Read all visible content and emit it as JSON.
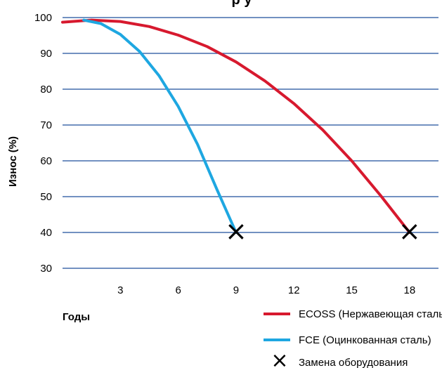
{
  "colors": {
    "grid": "#1d4f9c",
    "ecoss": "#d7192e",
    "fce": "#1ea7e1",
    "marker": "#000000"
  },
  "chart_data": {
    "type": "line",
    "title": "",
    "title_visible": "р у",
    "xlabel": "Годы",
    "ylabel": "Износ (%)",
    "xlim": [
      0,
      19.5
    ],
    "ylim": [
      30,
      100
    ],
    "x_ticks": [
      3,
      6,
      9,
      12,
      15,
      18
    ],
    "y_ticks": [
      30,
      40,
      50,
      60,
      70,
      80,
      90,
      100
    ],
    "grid": "horizontal",
    "legend_position": "bottom-right",
    "series": [
      {
        "name": "ECOSS (Нержавеющая сталь)",
        "color_key": "ecoss",
        "x": [
          0,
          1.5,
          3,
          4.5,
          6,
          7.5,
          9,
          10.5,
          12,
          13.5,
          15,
          16.5,
          18
        ],
        "y": [
          98.7,
          99.3,
          98.9,
          97.5,
          95.1,
          91.9,
          87.6,
          82.3,
          76.0,
          68.6,
          60.0,
          50.3,
          40.0
        ]
      },
      {
        "name": "FCE (Оцинкованная сталь)",
        "color_key": "fce",
        "x": [
          1.1,
          2,
          3,
          4,
          5,
          6,
          7,
          8,
          9
        ],
        "y": [
          99.3,
          98.3,
          95.3,
          90.5,
          83.8,
          75.2,
          64.6,
          52.1,
          40.0
        ]
      }
    ],
    "markers": {
      "name": "Замена оборудования",
      "symbol": "×",
      "points": [
        {
          "x": 9,
          "y": 40
        },
        {
          "x": 18,
          "y": 40
        }
      ]
    }
  }
}
